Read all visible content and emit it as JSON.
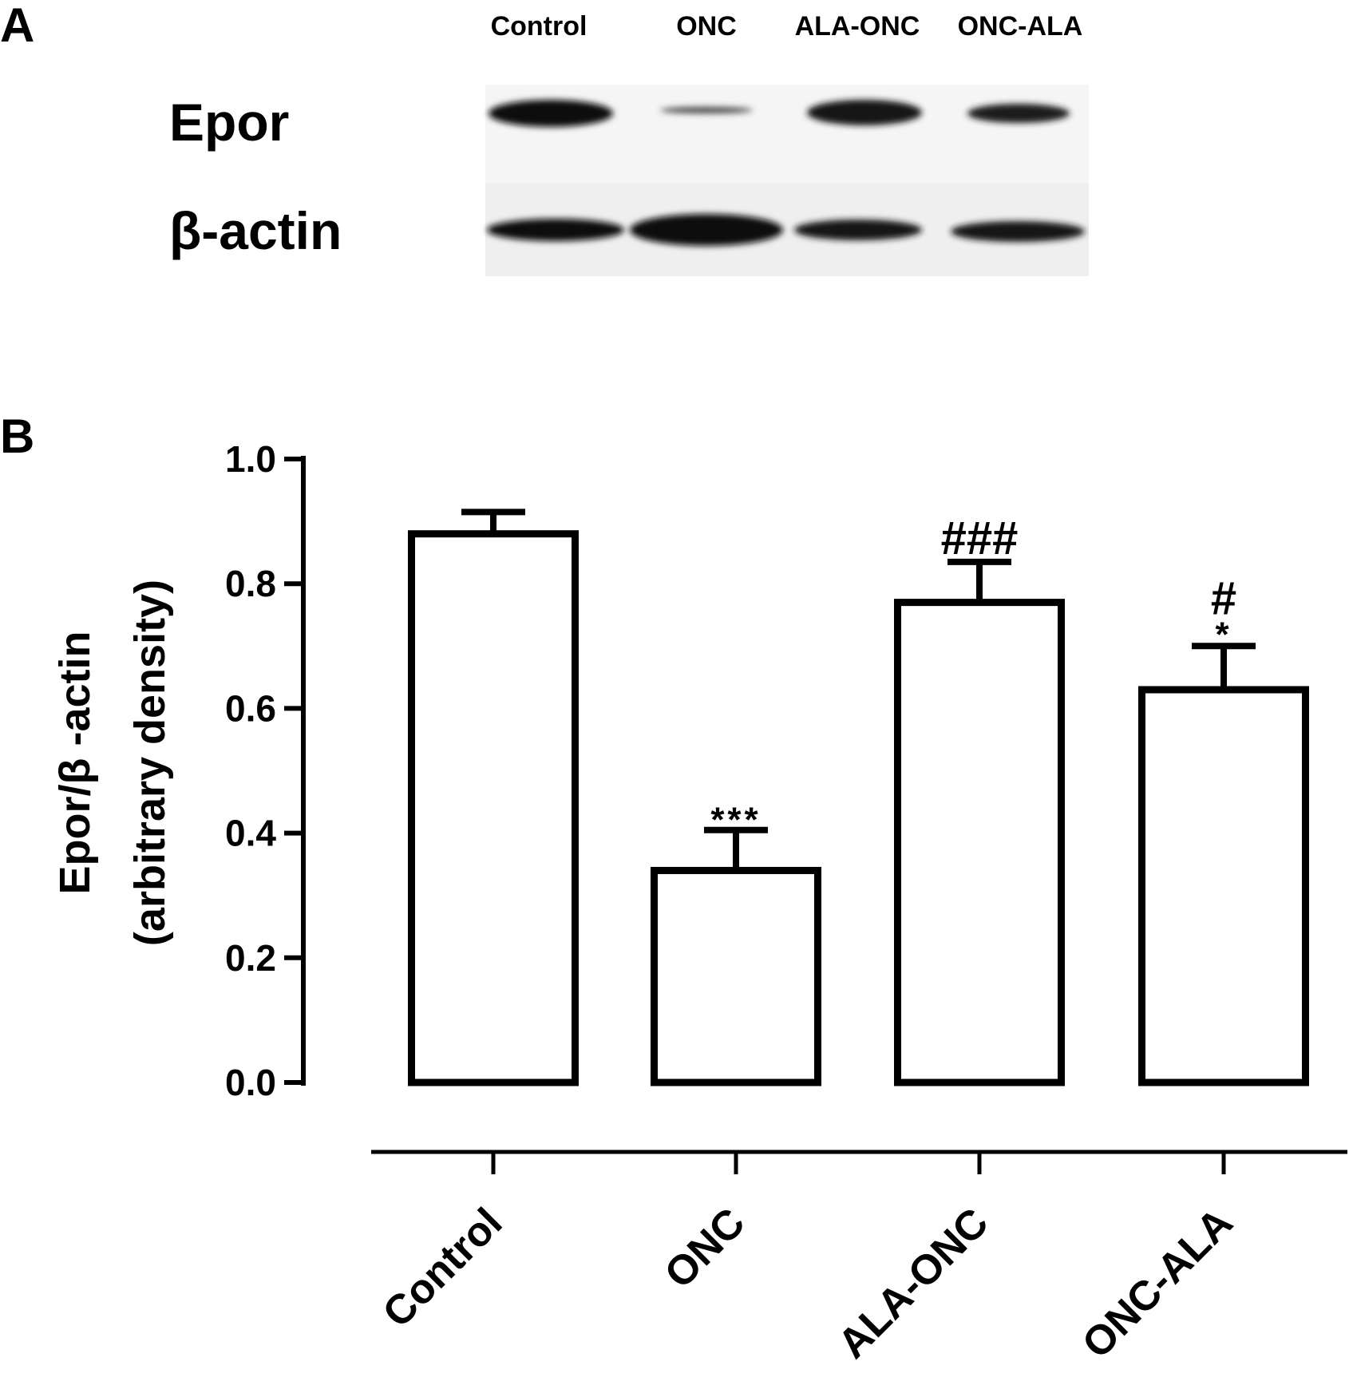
{
  "panels": {
    "a": "A",
    "b": "B"
  },
  "blot": {
    "lanes": [
      "Control",
      "ONC",
      "ALA-ONC",
      "ONC-ALA"
    ],
    "rows": [
      "Epor",
      "β-actin"
    ]
  },
  "chart_data": {
    "type": "bar",
    "ylabel": [
      "Epor/β -actin",
      "(arbitrary density)"
    ],
    "categories": [
      "Control",
      "ONC",
      "ALA-ONC",
      "ONC-ALA"
    ],
    "values": [
      0.88,
      0.34,
      0.77,
      0.63
    ],
    "errors": [
      0.035,
      0.065,
      0.065,
      0.07
    ],
    "annotations": [
      [],
      [
        "***"
      ],
      [
        "###"
      ],
      [
        "#",
        "*"
      ]
    ],
    "color": "#ffffff",
    "ylim": [
      0,
      1.0
    ],
    "yticks": [
      {
        "value": 0,
        "label": "0.0"
      },
      0.2,
      0.4,
      0.6,
      0.8,
      {
        "value": 1.0,
        "label": "1.0"
      }
    ]
  }
}
